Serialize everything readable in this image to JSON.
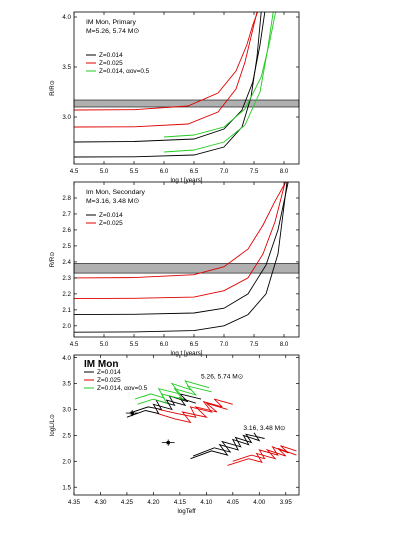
{
  "colors": {
    "z014": "#000000",
    "z025": "#e00000",
    "alpha": "#22cc22",
    "band": "#b0b0b0"
  },
  "chart_data": [
    {
      "type": "line",
      "title": "IM Mon, Primary",
      "subtitle": "M=5.26, 5.74 M⊙",
      "xlabel": "log t  [years]",
      "ylabel": "R/R⊙",
      "xlim": [
        4.5,
        8.25
      ],
      "ylim": [
        2.53,
        4.05
      ],
      "xticks": [
        4.5,
        5.0,
        5.5,
        6.0,
        6.5,
        7.0,
        7.5,
        8.0
      ],
      "yticks": [
        3.0,
        3.5,
        4.0
      ],
      "band": [
        3.1,
        3.17
      ],
      "legend": [
        "Z=0.014",
        "Z=0.025",
        "Z=0.014, αov=0.5"
      ],
      "series": [
        {
          "name": "Z=0.014",
          "key": "z014",
          "x": [
            4.5,
            5.5,
            6.5,
            7.0,
            7.3,
            7.45,
            7.55,
            7.62
          ],
          "y": [
            2.6,
            2.602,
            2.62,
            2.7,
            2.9,
            3.2,
            3.6,
            4.05
          ]
        },
        {
          "name": "Z=0.014",
          "key": "z014",
          "x": [
            4.5,
            5.5,
            6.5,
            7.0,
            7.3,
            7.48,
            7.6,
            7.68
          ],
          "y": [
            2.75,
            2.755,
            2.78,
            2.88,
            3.07,
            3.35,
            3.72,
            4.05
          ]
        },
        {
          "name": "Z=0.025",
          "key": "z025",
          "x": [
            4.5,
            5.5,
            6.4,
            6.9,
            7.2,
            7.35,
            7.45,
            7.55
          ],
          "y": [
            2.9,
            2.902,
            2.93,
            3.05,
            3.28,
            3.55,
            3.8,
            4.05
          ]
        },
        {
          "name": "Z=0.025",
          "key": "z025",
          "x": [
            4.5,
            5.5,
            6.4,
            6.9,
            7.2,
            7.38,
            7.48,
            7.56
          ],
          "y": [
            3.07,
            3.073,
            3.11,
            3.24,
            3.46,
            3.72,
            3.92,
            4.05
          ]
        },
        {
          "name": "Z=0.014, αov=0.5",
          "key": "alpha",
          "x": [
            6.0,
            6.5,
            7.0,
            7.35,
            7.6,
            7.72,
            7.82
          ],
          "y": [
            2.65,
            2.67,
            2.75,
            2.92,
            3.25,
            3.65,
            4.05
          ]
        },
        {
          "name": "Z=0.014, αov=0.5",
          "key": "alpha",
          "x": [
            6.0,
            6.5,
            7.0,
            7.35,
            7.62,
            7.76,
            7.86
          ],
          "y": [
            2.8,
            2.82,
            2.9,
            3.08,
            3.4,
            3.75,
            4.05
          ]
        }
      ]
    },
    {
      "type": "line",
      "title": "Im Mon, Secondary",
      "subtitle": "M=3.16, 3.48 M⊙",
      "xlabel": "log t  [years]",
      "ylabel": "R/R⊙",
      "xlim": [
        4.5,
        8.25
      ],
      "ylim": [
        1.93,
        2.9
      ],
      "xticks": [
        4.5,
        5.0,
        5.5,
        6.0,
        6.5,
        7.0,
        7.5,
        8.0
      ],
      "yticks": [
        2.0,
        2.1,
        2.2,
        2.3,
        2.4,
        2.5,
        2.6,
        2.7,
        2.8
      ],
      "band": [
        2.33,
        2.39
      ],
      "legend": [
        "Z=0.014",
        "Z=0.025"
      ],
      "series": [
        {
          "name": "Z=0.014",
          "key": "z014",
          "x": [
            4.5,
            5.5,
            6.5,
            7.0,
            7.4,
            7.7,
            7.9,
            8.05
          ],
          "y": [
            1.96,
            1.962,
            1.97,
            2.0,
            2.07,
            2.2,
            2.45,
            2.9
          ]
        },
        {
          "name": "Z=0.014",
          "key": "z014",
          "x": [
            4.5,
            5.5,
            6.5,
            7.0,
            7.4,
            7.7,
            7.9,
            8.07
          ],
          "y": [
            2.07,
            2.072,
            2.08,
            2.11,
            2.2,
            2.38,
            2.6,
            2.9
          ]
        },
        {
          "name": "Z=0.025",
          "key": "z025",
          "x": [
            4.5,
            5.5,
            6.5,
            7.0,
            7.4,
            7.65,
            7.85,
            8.02
          ],
          "y": [
            2.17,
            2.172,
            2.18,
            2.22,
            2.3,
            2.45,
            2.65,
            2.9
          ]
        },
        {
          "name": "Z=0.025",
          "key": "z025",
          "x": [
            4.5,
            5.5,
            6.5,
            7.0,
            7.4,
            7.65,
            7.85,
            8.03
          ],
          "y": [
            2.3,
            2.302,
            2.32,
            2.37,
            2.48,
            2.63,
            2.78,
            2.9
          ]
        }
      ]
    },
    {
      "type": "line",
      "title": "IM Mon",
      "xlabel": "logTeff",
      "ylabel": "logL/L⊙",
      "xlim": [
        4.35,
        3.925
      ],
      "ylim": [
        1.35,
        4.05
      ],
      "xticks": [
        4.35,
        4.3,
        4.25,
        4.2,
        4.15,
        4.1,
        4.05,
        4.0,
        3.95
      ],
      "yticks": [
        1.5,
        2.0,
        2.5,
        3.0,
        3.5,
        4.0
      ],
      "legend": [
        "Z=0.014",
        "Z=0.025",
        "Z=0.014, αov=0.5"
      ],
      "annotations": [
        "5.26, 5.74 M⊙",
        "3.16, 3.48 M⊙"
      ],
      "points": [
        {
          "x": 4.24,
          "y": 2.93,
          "xerr": 0.012,
          "yerr": 0.06
        },
        {
          "x": 4.172,
          "y": 2.36,
          "xerr": 0.012,
          "yerr": 0.06
        }
      ],
      "series": [
        {
          "name": "Z=0.025",
          "key": "z025",
          "x": [
            4.195,
            4.16,
            4.13,
            4.145,
            4.1,
            4.12,
            4.08,
            4.1,
            4.06
          ],
          "y": [
            2.93,
            2.82,
            2.75,
            2.95,
            2.85,
            3.05,
            2.95,
            3.12,
            3.0
          ]
        },
        {
          "name": "Z=0.025",
          "key": "z025",
          "x": [
            4.19,
            4.155,
            4.12,
            4.13,
            4.09,
            4.105,
            4.07,
            4.085,
            4.05
          ],
          "y": [
            3.0,
            2.92,
            2.85,
            3.05,
            2.95,
            3.15,
            3.05,
            3.2,
            3.1
          ]
        },
        {
          "name": "Z=0.014",
          "key": "z014",
          "x": [
            4.25,
            4.215,
            4.19,
            4.2,
            4.165,
            4.175,
            4.14,
            4.15,
            4.12
          ],
          "y": [
            2.85,
            2.98,
            2.92,
            3.1,
            3.0,
            3.18,
            3.08,
            3.22,
            3.12
          ]
        },
        {
          "name": "Z=0.014",
          "key": "z014",
          "x": [
            4.245,
            4.21,
            4.185,
            4.195,
            4.16,
            4.17,
            4.135,
            4.15,
            4.11
          ],
          "y": [
            2.93,
            3.05,
            3.0,
            3.18,
            3.08,
            3.26,
            3.15,
            3.3,
            3.2
          ]
        },
        {
          "name": "Z=0.014, αov=0.5",
          "key": "alpha",
          "x": [
            4.235,
            4.205,
            4.18,
            4.19,
            4.15,
            4.165,
            4.13,
            4.14,
            4.095
          ],
          "y": [
            3.2,
            3.3,
            3.22,
            3.4,
            3.3,
            3.5,
            3.38,
            3.55,
            3.42
          ]
        },
        {
          "name": "Z=0.014, αov=0.5",
          "key": "alpha",
          "x": [
            4.23,
            4.2,
            4.175,
            4.185,
            4.145,
            4.16,
            4.12,
            4.135,
            4.09
          ],
          "y": [
            3.1,
            3.2,
            3.12,
            3.3,
            3.2,
            3.4,
            3.28,
            3.45,
            3.34
          ]
        },
        {
          "name": "Z=0.014",
          "key": "z014",
          "x": [
            4.13,
            4.09,
            4.06,
            4.075,
            4.04,
            4.05,
            4.02,
            4.03,
            4.0,
            4.01
          ],
          "y": [
            2.05,
            2.2,
            2.12,
            2.32,
            2.22,
            2.42,
            2.32,
            2.5,
            2.4,
            2.55
          ]
        },
        {
          "name": "Z=0.014",
          "key": "z014",
          "x": [
            4.125,
            4.085,
            4.055,
            4.07,
            4.035,
            4.045,
            4.015,
            4.025,
            3.99
          ],
          "y": [
            2.1,
            2.26,
            2.18,
            2.38,
            2.28,
            2.46,
            2.36,
            2.52,
            2.44
          ]
        },
        {
          "name": "Z=0.025",
          "key": "z025",
          "x": [
            4.06,
            4.02,
            3.995,
            4.005,
            3.97,
            3.985,
            3.95,
            3.965,
            3.93
          ],
          "y": [
            1.92,
            2.05,
            1.98,
            2.15,
            2.05,
            2.22,
            2.1,
            2.25,
            2.12
          ]
        },
        {
          "name": "Z=0.025",
          "key": "z025",
          "x": [
            4.05,
            4.015,
            3.99,
            4.0,
            3.965,
            3.975,
            3.945,
            3.96,
            3.93
          ],
          "y": [
            2.0,
            2.12,
            2.05,
            2.22,
            2.12,
            2.28,
            2.16,
            2.3,
            2.2
          ]
        }
      ]
    }
  ]
}
